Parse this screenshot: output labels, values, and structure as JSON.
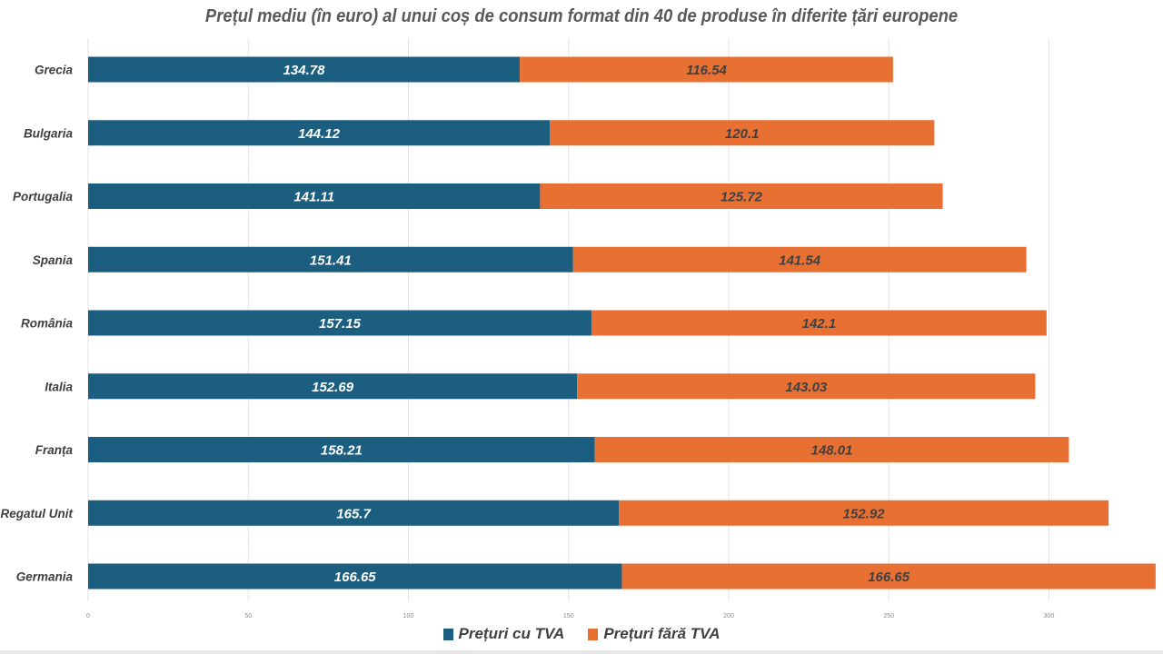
{
  "chart_data": {
    "type": "bar",
    "orientation": "horizontal",
    "stacked": true,
    "title": "Prețul mediu (în euro) al unui coș de consum format din 40 de produse în diferite țări europene",
    "categories": [
      "Grecia",
      "Bulgaria",
      "Portugalia",
      "Spania",
      "România",
      "Italia",
      "Franța",
      "Regatul Unit",
      "Germania"
    ],
    "series": [
      {
        "name": "Prețuri cu TVA",
        "color": "#1b5e80",
        "values": [
          134.78,
          144.12,
          141.11,
          151.41,
          157.15,
          152.69,
          158.21,
          165.7,
          166.65
        ]
      },
      {
        "name": "Prețuri fără TVA",
        "color": "#e87033",
        "values": [
          116.54,
          120.1,
          125.72,
          141.54,
          142.1,
          143.03,
          148.01,
          152.92,
          166.65
        ]
      }
    ],
    "data_labels": [
      [
        "134.78",
        "144.12",
        "141.11",
        "151.41",
        "157.15",
        "152.69",
        "158.21",
        "165.7",
        "166.65"
      ],
      [
        "116.54",
        "120.1",
        "125.72",
        "141.54",
        "142.1",
        "143.03",
        "148.01",
        "152.92",
        "166.65"
      ]
    ],
    "xlim": [
      0,
      333.3
    ],
    "xticks": [
      "0",
      "50",
      "100",
      "150",
      "200",
      "250",
      "300"
    ],
    "grid": true,
    "legend_position": "bottom"
  }
}
